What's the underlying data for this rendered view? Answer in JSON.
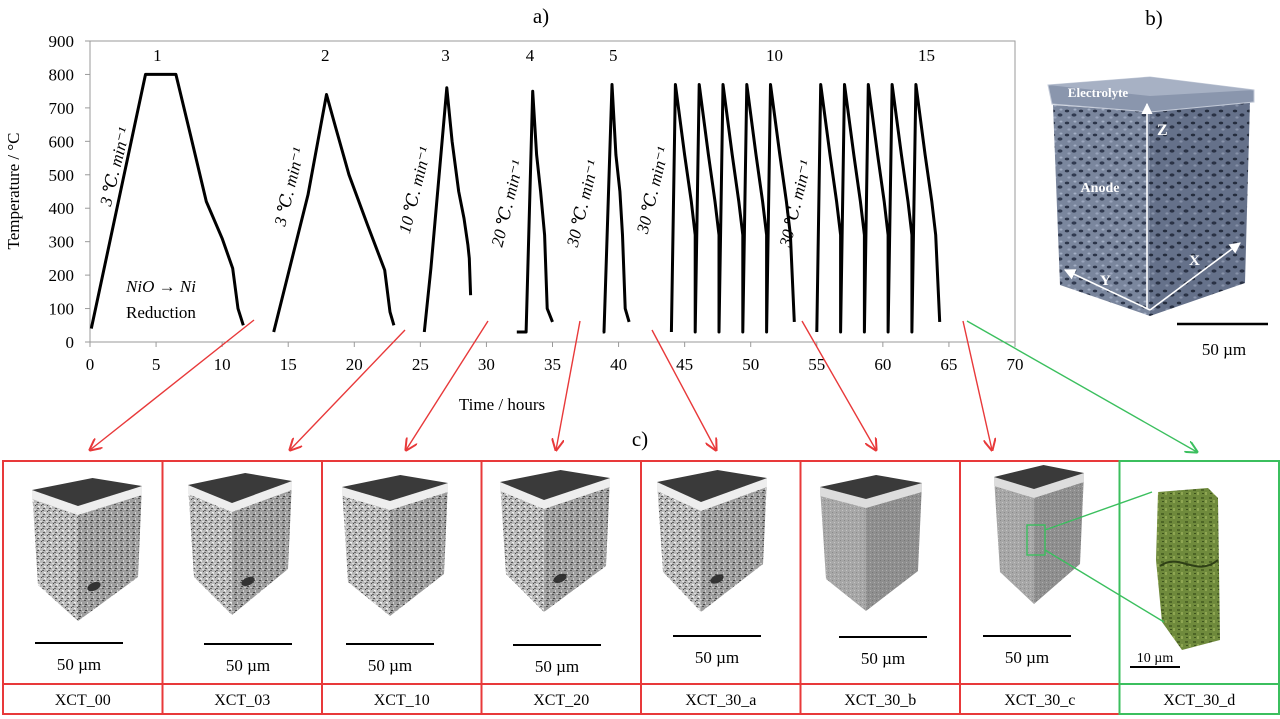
{
  "panel_labels": {
    "a": "a)",
    "b": "b)",
    "c": "c)"
  },
  "chart_data": {
    "type": "line",
    "title": "",
    "xlabel": "Time / hours",
    "ylabel": "Temperature / °C",
    "xlim": [
      0,
      70
    ],
    "ylim": [
      0,
      900
    ],
    "xticks": [
      0,
      5,
      10,
      15,
      20,
      25,
      30,
      35,
      40,
      45,
      50,
      55,
      60,
      65,
      70
    ],
    "yticks": [
      0,
      100,
      200,
      300,
      400,
      500,
      600,
      700,
      800,
      900
    ],
    "grid": false,
    "legend": "none",
    "series": [
      {
        "x": [
          0.1,
          4.2,
          6.5,
          7.6,
          8.8,
          10.0,
          10.8,
          11.2,
          11.6
        ],
        "y": [
          40,
          800,
          800,
          620,
          420,
          310,
          220,
          100,
          50
        ]
      },
      {
        "x": [
          13.9,
          16.5,
          17.9,
          18.6,
          19.6,
          21.0,
          22.3,
          22.7,
          23.0
        ],
        "y": [
          30,
          440,
          740,
          640,
          500,
          350,
          215,
          90,
          50
        ]
      },
      {
        "x": [
          25.3,
          25.8,
          27.0,
          27.4,
          27.9,
          28.3,
          28.6,
          28.7,
          28.8
        ],
        "y": [
          30,
          220,
          760,
          600,
          450,
          370,
          290,
          250,
          140
        ]
      },
      {
        "x": [
          32.3,
          33.0,
          33.5,
          33.8,
          34.1,
          34.4,
          34.6,
          35.0
        ],
        "y": [
          30,
          30,
          750,
          560,
          450,
          320,
          100,
          60
        ]
      },
      {
        "x": [
          38.8,
          38.9,
          39.5,
          39.8,
          40.1,
          40.3,
          40.5,
          40.8
        ],
        "y": [
          30,
          30,
          770,
          560,
          450,
          320,
          100,
          60
        ]
      },
      {
        "x": [
          44.0,
          44.3,
          45.0,
          45.5,
          45.8,
          45.8,
          46.1,
          46.8,
          47.3,
          47.6,
          47.6,
          47.9,
          48.6,
          49.1,
          49.4,
          49.4,
          49.7,
          50.4,
          50.9,
          51.2,
          51.2,
          51.5,
          52.2,
          52.7,
          53.0,
          53.3
        ],
        "y": [
          30,
          770,
          560,
          420,
          320,
          30,
          770,
          560,
          420,
          320,
          30,
          770,
          560,
          420,
          320,
          30,
          770,
          560,
          420,
          320,
          30,
          770,
          560,
          420,
          320,
          60
        ]
      },
      {
        "x": [
          55.0,
          55.3,
          56.0,
          56.5,
          56.8,
          56.8,
          57.1,
          57.8,
          58.3,
          58.6,
          58.6,
          58.9,
          59.6,
          60.1,
          60.4,
          60.4,
          60.7,
          61.4,
          61.9,
          62.2,
          62.2,
          62.5,
          63.2,
          63.7,
          64.0,
          64.3
        ],
        "y": [
          30,
          770,
          560,
          420,
          320,
          30,
          770,
          560,
          420,
          320,
          30,
          770,
          560,
          420,
          320,
          30,
          770,
          560,
          420,
          320,
          30,
          770,
          560,
          420,
          320,
          60
        ]
      }
    ],
    "annotations": {
      "cycle_numbers": [
        {
          "text": "1",
          "x": 5.1,
          "y": 840
        },
        {
          "text": "2",
          "x": 17.8,
          "y": 840
        },
        {
          "text": "3",
          "x": 26.9,
          "y": 840
        },
        {
          "text": "4",
          "x": 33.3,
          "y": 840
        },
        {
          "text": "5",
          "x": 39.6,
          "y": 840
        },
        {
          "text": "10",
          "x": 51.8,
          "y": 840
        },
        {
          "text": "15",
          "x": 63.3,
          "y": 840
        }
      ],
      "rates": [
        {
          "text": "3 ℃. min⁻¹",
          "x": 2.3,
          "y": 520
        },
        {
          "text": "3 ℃. min⁻¹",
          "x": 15.5,
          "y": 460
        },
        {
          "text": "10 ℃. min⁻¹",
          "x": 25.0,
          "y": 450
        },
        {
          "text": "20 ℃. min⁻¹",
          "x": 32.0,
          "y": 410
        },
        {
          "text": "30 ℃. min⁻¹",
          "x": 37.7,
          "y": 410
        },
        {
          "text": "30 ℃. min⁻¹",
          "x": 43.0,
          "y": 450
        },
        {
          "text": "30 ℃. min⁻¹",
          "x": 53.8,
          "y": 410
        }
      ],
      "reduction_formula": "NiO  → Ni",
      "reduction_label": "Reduction"
    }
  },
  "panel_b": {
    "electrolyte": "Electrolyte",
    "anode": "Anode",
    "axis_z": "Z",
    "axis_x": "X",
    "axis_y": "Y",
    "scale": "50 µm",
    "colors": {
      "anode": "#6f7b93",
      "electrolyte": "#8a96ad"
    }
  },
  "panel_c": {
    "samples": [
      {
        "label": "XCT_00",
        "scale": "50 µm",
        "border": "#e8393a"
      },
      {
        "label": "XCT_03",
        "scale": "50 µm",
        "border": "#e8393a"
      },
      {
        "label": "XCT_10",
        "scale": "50 µm",
        "border": "#e8393a"
      },
      {
        "label": "XCT_20",
        "scale": "50 µm",
        "border": "#e8393a"
      },
      {
        "label": "XCT_30_a",
        "scale": "50 µm",
        "border": "#e8393a"
      },
      {
        "label": "XCT_30_b",
        "scale": "50 µm",
        "border": "#e8393a"
      },
      {
        "label": "XCT_30_c",
        "scale": "50 µm",
        "border": "#e8393a"
      },
      {
        "label": "XCT_30_d",
        "scale": "10 µm",
        "border": "#3bbf5e"
      }
    ]
  },
  "colors": {
    "red_arrow": "#e8393a",
    "green_arrow": "#3bbf5e",
    "line": "#000000"
  }
}
